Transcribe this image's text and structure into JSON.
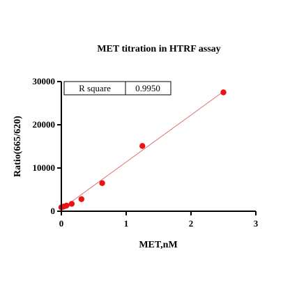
{
  "chart_data": {
    "type": "scatter",
    "title": "MET titration in HTRF assay",
    "xlabel": "MET,nM",
    "ylabel": "Ratio(665/620)",
    "xlim": [
      0,
      3
    ],
    "ylim": [
      0,
      30000
    ],
    "x_ticks": [
      0,
      1,
      2,
      3
    ],
    "y_ticks": [
      0,
      10000,
      20000,
      30000
    ],
    "x_tick_labels": [
      "0",
      "1",
      "2",
      "3"
    ],
    "y_tick_labels": [
      "0",
      "10000",
      "20000",
      "30000"
    ],
    "grid": false,
    "series": [
      {
        "color": "#ee1111",
        "points": [
          {
            "x": 0.0,
            "y": 900
          },
          {
            "x": 0.02,
            "y": 1000
          },
          {
            "x": 0.04,
            "y": 1100
          },
          {
            "x": 0.08,
            "y": 1300
          },
          {
            "x": 0.16,
            "y": 1700
          },
          {
            "x": 0.31,
            "y": 2800
          },
          {
            "x": 0.63,
            "y": 6500
          },
          {
            "x": 1.25,
            "y": 15100
          },
          {
            "x": 2.5,
            "y": 27500
          }
        ]
      }
    ],
    "fit_line": {
      "color": "#e07070",
      "x": [
        0,
        2.5
      ],
      "y": [
        500,
        27700
      ]
    },
    "stats_table": {
      "label": "R square",
      "value": "0.9950"
    }
  }
}
